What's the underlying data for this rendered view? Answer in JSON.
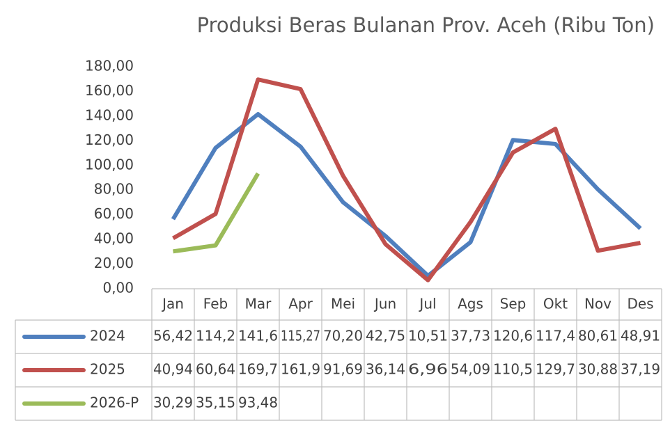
{
  "chart_data": {
    "type": "line",
    "title": "Produksi Beras Bulanan Prov. Aceh (Ribu Ton)",
    "categories": [
      "Jan",
      "Feb",
      "Mar",
      "Apr",
      "Mei",
      "Jun",
      "Jul",
      "Ags",
      "Sep",
      "Okt",
      "Nov",
      "Des"
    ],
    "series": [
      {
        "name": "2024",
        "color": "#4f7fbe",
        "values": [
          56.42,
          114.2,
          141.6,
          115.27,
          70.2,
          42.75,
          10.51,
          37.73,
          120.6,
          117.4,
          80.61,
          48.91
        ],
        "value_labels": [
          "56,42",
          "114,2",
          "141,6",
          "115,27",
          "70,20",
          "42,75",
          "10,51",
          "37,73",
          "120,6",
          "117,4",
          "80,61",
          "48,91"
        ]
      },
      {
        "name": "2025",
        "color": "#c0504d",
        "values": [
          40.94,
          60.64,
          169.7,
          161.9,
          91.69,
          36.14,
          6.96,
          54.09,
          110.5,
          129.7,
          30.88,
          37.19
        ],
        "value_labels": [
          "40,94",
          "60,64",
          "169,7",
          "161,9",
          "91,69",
          "36,14",
          "6,96",
          "54,09",
          "110,5",
          "129,7",
          "30,88",
          "37,19"
        ]
      },
      {
        "name": "2026-P",
        "color": "#9bbb59",
        "values": [
          30.29,
          35.15,
          93.48,
          null,
          null,
          null,
          null,
          null,
          null,
          null,
          null,
          null
        ],
        "value_labels": [
          "30,29",
          "35,15",
          "93,48",
          null,
          null,
          null,
          null,
          null,
          null,
          null,
          null,
          null
        ]
      }
    ],
    "ylim": [
      0,
      180
    ],
    "yticks": [
      {
        "value": 0,
        "label": "0,00"
      },
      {
        "value": 20,
        "label": "20,00"
      },
      {
        "value": 40,
        "label": "40,00"
      },
      {
        "value": 60,
        "label": "60,00"
      },
      {
        "value": 80,
        "label": "80,00"
      },
      {
        "value": 100,
        "label": "100,00"
      },
      {
        "value": 120,
        "label": "120,00"
      },
      {
        "value": 140,
        "label": "140,00"
      },
      {
        "value": 160,
        "label": "160,00"
      },
      {
        "value": 180,
        "label": "180,00"
      }
    ],
    "grid": false
  }
}
